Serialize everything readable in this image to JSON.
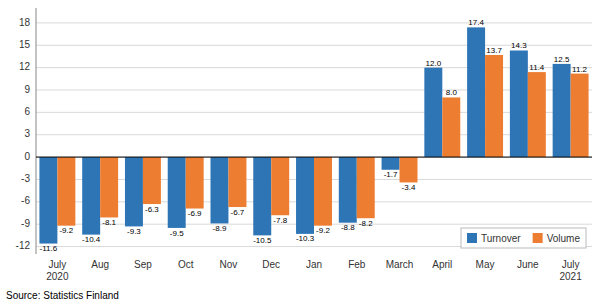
{
  "chart_data": {
    "type": "bar",
    "categories": [
      "July\n2020",
      "Aug",
      "Sep",
      "Oct",
      "Nov",
      "Dec",
      "Jan",
      "Feb",
      "March",
      "April",
      "May",
      "June",
      "July\n2021"
    ],
    "series": [
      {
        "name": "Turnover",
        "color": "#2e75b6",
        "values": [
          -11.6,
          -10.4,
          -9.3,
          -9.5,
          -8.9,
          -10.5,
          -10.3,
          -8.8,
          -1.7,
          12.0,
          17.4,
          14.3,
          12.5
        ],
        "value_labels": [
          "-11.6",
          "-10.4",
          "-9.3",
          "-9.5",
          "-8.9",
          "-10.5",
          "-10.3",
          "-8.8",
          "-1.7",
          "12.0",
          "17.4",
          "14.3",
          "12.5"
        ]
      },
      {
        "name": "Volume",
        "color": "#ed7d31",
        "values": [
          -9.2,
          -8.1,
          -6.3,
          -6.9,
          -6.7,
          -7.8,
          -9.2,
          -8.2,
          -3.4,
          8.0,
          13.7,
          11.4,
          11.2
        ],
        "value_labels": [
          "-9.2",
          "-8.1",
          "-6.3",
          "-6.9",
          "-6.7",
          "-7.8",
          "-9.2",
          "-8.2",
          "-3.4",
          "8.0",
          "13.7",
          "11.4",
          "11.2"
        ]
      }
    ],
    "ylim": [
      -13,
      20
    ],
    "yticks": [
      -12,
      -9,
      -6,
      -3,
      0,
      3,
      6,
      9,
      12,
      15,
      18
    ],
    "grid": true,
    "legend": "lower right",
    "data_labels": true,
    "source": "Source: Statistics Finland"
  }
}
